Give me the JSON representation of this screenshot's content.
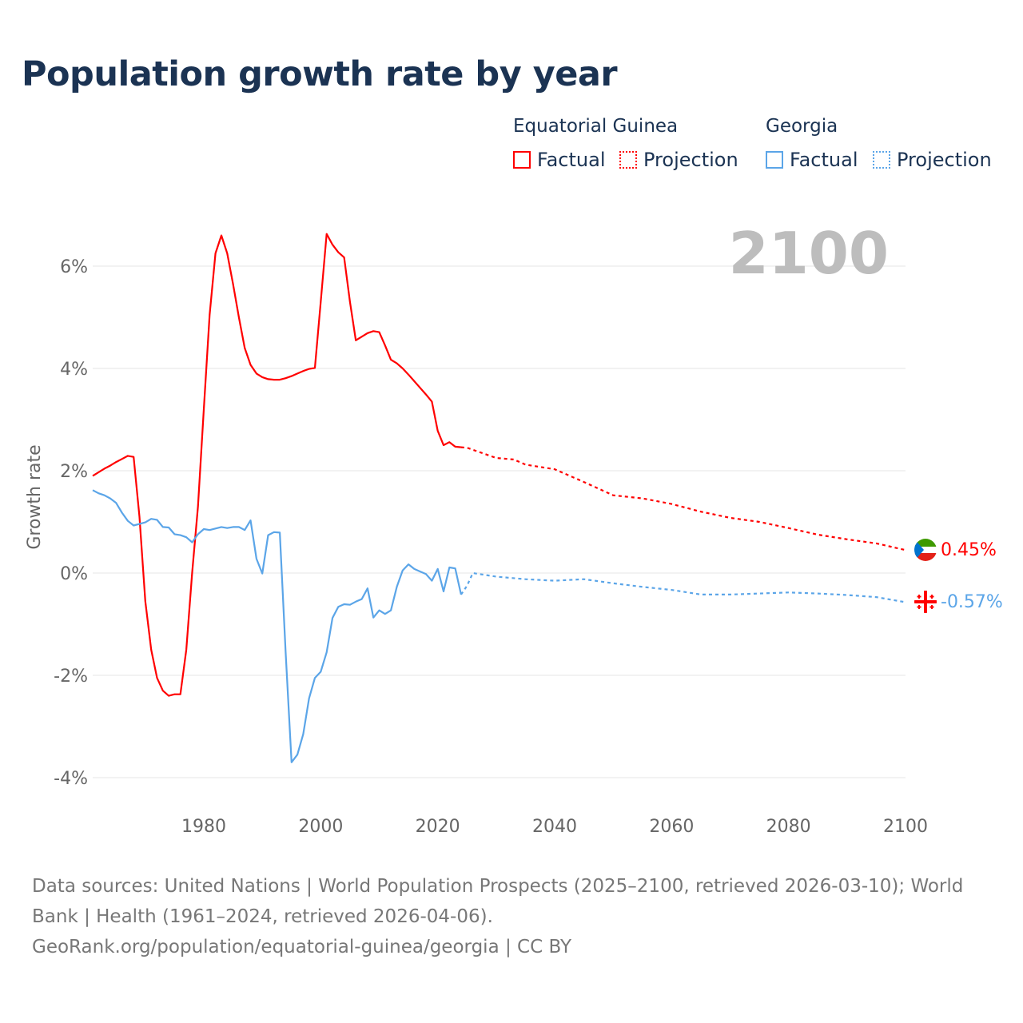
{
  "title": "Population growth rate by year",
  "legend": {
    "groups": [
      {
        "name": "Equatorial Guinea",
        "factual": "Factual",
        "projection": "Projection",
        "color": "#ff0000"
      },
      {
        "name": "Georgia",
        "factual": "Factual",
        "projection": "Projection",
        "color": "#5ba5e8"
      }
    ]
  },
  "year_label": "2100",
  "end_labels": {
    "eq_guinea": "0.45%",
    "georgia": "-0.57%"
  },
  "footer": {
    "sources": "Data sources: United Nations | World Population Prospects (2025–2100, retrieved 2026-03-10); World Bank | Health (1961–2024, retrieved 2026-04-06).",
    "link": "GeoRank.org/population/equatorial-guinea/georgia | CC BY"
  },
  "chart_data": {
    "type": "line",
    "title": "Population growth rate by year",
    "xlabel": "",
    "ylabel": "Growth rate",
    "xlim": [
      1961,
      2100
    ],
    "ylim": [
      -4.6,
      7
    ],
    "grid": true,
    "x_ticks": [
      1980,
      2000,
      2020,
      2040,
      2060,
      2080,
      2100
    ],
    "x_tick_labels": [
      "1980",
      "2000",
      "2020",
      "2040",
      "2060",
      "2080",
      "2100"
    ],
    "y_ticks": [
      6,
      4,
      2,
      0,
      -2,
      -4
    ],
    "y_tick_labels": [
      "6%",
      "4%",
      "2%",
      "0%",
      "-2%",
      "-4%"
    ],
    "legend_position": "top-right",
    "series": [
      {
        "name": "Equatorial Guinea Factual",
        "color": "#ff0000",
        "style": "solid",
        "x": [
          1961,
          1962,
          1963,
          1964,
          1965,
          1966,
          1967,
          1968,
          1969,
          1970,
          1971,
          1972,
          1973,
          1974,
          1975,
          1976,
          1977,
          1978,
          1979,
          1980,
          1981,
          1982,
          1983,
          1984,
          1985,
          1986,
          1987,
          1988,
          1989,
          1990,
          1991,
          1992,
          1993,
          1994,
          1995,
          1996,
          1997,
          1998,
          1999,
          2000,
          2001,
          2002,
          2003,
          2004,
          2005,
          2006,
          2007,
          2008,
          2009,
          2010,
          2011,
          2012,
          2013,
          2014,
          2015,
          2016,
          2017,
          2018,
          2019,
          2020,
          2021,
          2022,
          2023,
          2024
        ],
        "y": [
          1.9,
          1.97,
          2.04,
          2.1,
          2.17,
          2.23,
          2.29,
          2.27,
          1.1,
          -0.55,
          -1.5,
          -2.05,
          -2.3,
          -2.4,
          -2.37,
          -2.37,
          -1.5,
          0.0,
          1.3,
          3.2,
          5.05,
          6.25,
          6.6,
          6.25,
          5.65,
          5.0,
          4.4,
          4.07,
          3.9,
          3.83,
          3.79,
          3.78,
          3.78,
          3.81,
          3.85,
          3.9,
          3.95,
          3.99,
          4.01,
          5.3,
          6.63,
          6.42,
          6.27,
          6.17,
          5.3,
          4.55,
          4.62,
          4.69,
          4.73,
          4.71,
          4.45,
          4.17,
          4.1,
          4.0,
          3.88,
          3.75,
          3.62,
          3.49,
          3.35,
          2.78,
          2.5,
          2.56,
          2.47,
          2.46
        ]
      },
      {
        "name": "Equatorial Guinea Projection",
        "color": "#ff0000",
        "style": "dotted",
        "x": [
          2024,
          2025,
          2030,
          2033,
          2035,
          2040,
          2045,
          2050,
          2055,
          2060,
          2065,
          2070,
          2075,
          2080,
          2085,
          2090,
          2095,
          2100
        ],
        "y": [
          2.46,
          2.45,
          2.25,
          2.22,
          2.12,
          2.03,
          1.78,
          1.52,
          1.46,
          1.35,
          1.2,
          1.08,
          1.0,
          0.88,
          0.75,
          0.66,
          0.58,
          0.45
        ]
      },
      {
        "name": "Georgia Factual",
        "color": "#5ba5e8",
        "style": "solid",
        "x": [
          1961,
          1962,
          1963,
          1964,
          1965,
          1966,
          1967,
          1968,
          1969,
          1970,
          1971,
          1972,
          1973,
          1974,
          1975,
          1976,
          1977,
          1978,
          1979,
          1980,
          1981,
          1982,
          1983,
          1984,
          1985,
          1986,
          1987,
          1988,
          1989,
          1990,
          1991,
          1992,
          1993,
          1994,
          1995,
          1996,
          1997,
          1998,
          1999,
          2000,
          2001,
          2002,
          2003,
          2004,
          2005,
          2006,
          2007,
          2008,
          2009,
          2010,
          2011,
          2012,
          2013,
          2014,
          2015,
          2016,
          2017,
          2018,
          2019,
          2020,
          2021,
          2022,
          2023,
          2024
        ],
        "y": [
          1.62,
          1.56,
          1.52,
          1.46,
          1.37,
          1.18,
          1.02,
          0.93,
          0.96,
          0.99,
          1.06,
          1.04,
          0.9,
          0.89,
          0.76,
          0.74,
          0.7,
          0.6,
          0.76,
          0.86,
          0.84,
          0.87,
          0.9,
          0.88,
          0.9,
          0.9,
          0.84,
          1.03,
          0.28,
          -0.01,
          0.74,
          0.8,
          0.79,
          -1.55,
          -3.7,
          -3.55,
          -3.15,
          -2.45,
          -2.05,
          -1.93,
          -1.55,
          -0.88,
          -0.66,
          -0.61,
          -0.62,
          -0.56,
          -0.51,
          -0.3,
          -0.87,
          -0.73,
          -0.8,
          -0.73,
          -0.27,
          0.05,
          0.17,
          0.08,
          0.03,
          -0.02,
          -0.15,
          0.08,
          -0.36,
          0.11,
          0.09,
          -0.42
        ]
      },
      {
        "name": "Georgia Projection",
        "color": "#5ba5e8",
        "style": "dotted",
        "x": [
          2024,
          2025,
          2026,
          2030,
          2035,
          2040,
          2045,
          2050,
          2055,
          2060,
          2065,
          2070,
          2075,
          2080,
          2085,
          2090,
          2095,
          2100
        ],
        "y": [
          -0.42,
          -0.25,
          0.0,
          -0.07,
          -0.12,
          -0.15,
          -0.12,
          -0.2,
          -0.27,
          -0.33,
          -0.42,
          -0.42,
          -0.4,
          -0.38,
          -0.4,
          -0.43,
          -0.47,
          -0.57
        ]
      }
    ]
  }
}
